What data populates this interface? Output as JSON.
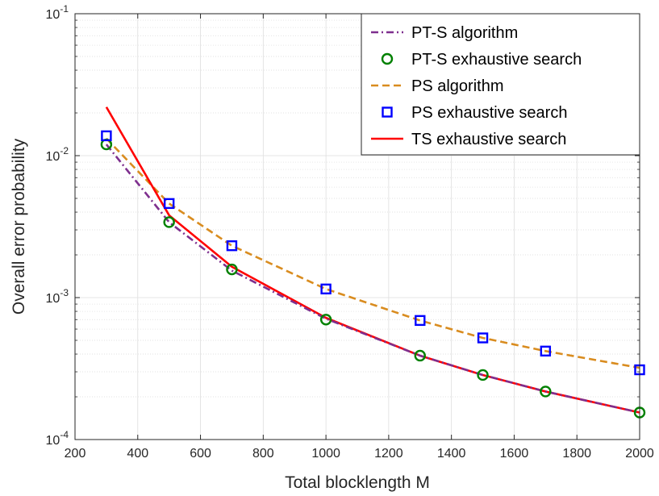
{
  "chart_data": {
    "type": "line",
    "xlabel": "Total blocklength  M",
    "ylabel": "Overall error probability",
    "xlim": [
      200,
      2000
    ],
    "ylim": [
      0.0001,
      0.1
    ],
    "yscale": "log",
    "grid": true,
    "minor_grid": true,
    "legend_position": "top-right",
    "x_ticks": [
      "200",
      "400",
      "600",
      "800",
      "1000",
      "1200",
      "1400",
      "1600",
      "1800",
      "2000"
    ],
    "y_ticks": [
      {
        "base": "10",
        "exp": "-4"
      },
      {
        "base": "10",
        "exp": "-3"
      },
      {
        "base": "10",
        "exp": "-2"
      },
      {
        "base": "10",
        "exp": "-1"
      }
    ],
    "series": [
      {
        "name": "PT-S algorithm",
        "style": "dash-dot",
        "color": "#7e2f8e",
        "x": [
          300,
          500,
          700,
          1000,
          1300,
          1500,
          1700,
          2000
        ],
        "y": [
          0.012,
          0.0034,
          0.00155,
          0.00071,
          0.00039,
          0.000285,
          0.000218,
          0.000155
        ]
      },
      {
        "name": "PT-S exhaustive search",
        "style": "circle",
        "color": "#008000",
        "x": [
          300,
          500,
          700,
          1000,
          1300,
          1500,
          1700,
          2000
        ],
        "y": [
          0.012,
          0.0034,
          0.00158,
          0.0007,
          0.00039,
          0.000285,
          0.000218,
          0.000155
        ]
      },
      {
        "name": "PS algorithm",
        "style": "dashed",
        "color": "#d98c1f",
        "x": [
          300,
          500,
          700,
          1000,
          1300,
          1500,
          1700,
          2000
        ],
        "y": [
          0.0132,
          0.0046,
          0.00232,
          0.00115,
          0.00069,
          0.00052,
          0.00042,
          0.00032
        ]
      },
      {
        "name": "PS exhaustive search",
        "style": "square",
        "color": "#0000ff",
        "x": [
          300,
          500,
          700,
          1000,
          1300,
          1500,
          1700,
          2000
        ],
        "y": [
          0.0138,
          0.0046,
          0.00232,
          0.00115,
          0.00069,
          0.00052,
          0.00042,
          0.00031
        ]
      },
      {
        "name": "TS exhaustive search",
        "style": "solid",
        "color": "#ff0000",
        "x": [
          300,
          500,
          700,
          1000,
          1300,
          1500,
          1700,
          2000
        ],
        "y": [
          0.022,
          0.0038,
          0.00165,
          0.00072,
          0.00039,
          0.000285,
          0.000218,
          0.000155
        ]
      }
    ]
  }
}
